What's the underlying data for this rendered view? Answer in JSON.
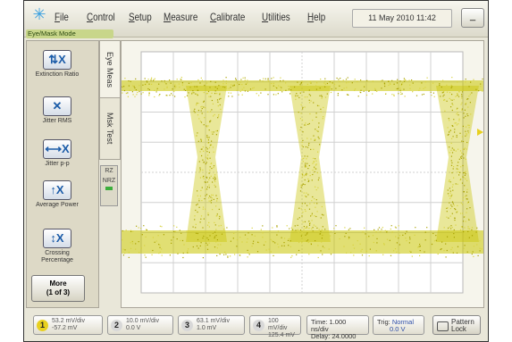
{
  "menubar": {
    "items": [
      "File",
      "Control",
      "Setup",
      "Measure",
      "Calibrate",
      "Utilities",
      "Help"
    ],
    "datetime": "11 May 2010  11:42",
    "minimize_label": "_"
  },
  "mode_label": "Eye/Mask Mode",
  "sidebar": {
    "tab_eye": "Eye Meas",
    "tab_mask": "Msk Test",
    "buttons": [
      {
        "label": "Extinction Ratio",
        "icon": "extinction-ratio-icon",
        "glyph": "⇅X"
      },
      {
        "label": "Jitter RMS",
        "icon": "jitter-rms-icon",
        "glyph": "✕"
      },
      {
        "label": "Jitter p-p",
        "icon": "jitter-pp-icon",
        "glyph": "⟷X"
      },
      {
        "label": "Average Power",
        "icon": "average-power-icon",
        "glyph": "↑X"
      },
      {
        "label": "Crossing Percentage",
        "icon": "crossing-percentage-icon",
        "glyph": "↕X"
      }
    ],
    "more_label": "More\n(1 of 3)",
    "nrz": [
      "RZ",
      "NRZ"
    ]
  },
  "status": {
    "channels": [
      {
        "n": "1",
        "scale": "53.2 mV/div",
        "offset": "-57.2 mV",
        "color": "#e8d020"
      },
      {
        "n": "2",
        "scale": "10.0 mV/div",
        "offset": "0.0 V",
        "color": "#d8d8d8"
      },
      {
        "n": "3",
        "scale": "63.1 mV/div",
        "offset": "1.0 mV",
        "color": "#d8d8d8"
      },
      {
        "n": "4",
        "scale": "100 mV/div",
        "offset": "125.4 mV",
        "color": "#d8d8d8"
      }
    ],
    "time": {
      "line1": "Time: 1.000 ns/div",
      "line2": "Delay: 24.0000 ns"
    },
    "trig": {
      "label": "Trig:",
      "mode": "Normal",
      "level": "0.0 V"
    },
    "pattern_lock": "Pattern Lock"
  },
  "colors": {
    "trace": "#c8c400",
    "marker": "#e8d020"
  }
}
